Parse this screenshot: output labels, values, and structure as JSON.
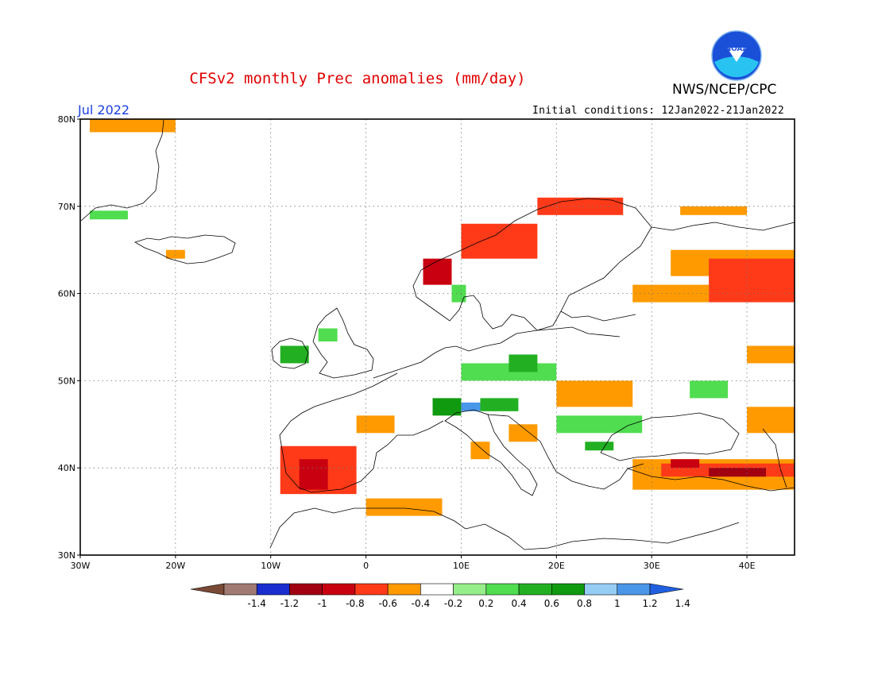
{
  "header": {
    "title": "CFSv2 monthly Prec anomalies (mm/day)",
    "organization": "NWS/NCEP/CPC",
    "target_month": "Jul 2022",
    "initial_conditions": "Initial conditions: 12Jan2022-21Jan2022",
    "logo": "noaa-logo"
  },
  "map": {
    "lon_range": [
      -30,
      45
    ],
    "lat_range": [
      30,
      80
    ],
    "lon_ticks": [
      {
        "value": -30,
        "label": "30W"
      },
      {
        "value": -20,
        "label": "20W"
      },
      {
        "value": -10,
        "label": "10W"
      },
      {
        "value": 0,
        "label": "0"
      },
      {
        "value": 10,
        "label": "10E"
      },
      {
        "value": 20,
        "label": "20E"
      },
      {
        "value": 30,
        "label": "30E"
      },
      {
        "value": 40,
        "label": "40E"
      }
    ],
    "lat_ticks": [
      {
        "value": 30,
        "label": "30N"
      },
      {
        "value": 40,
        "label": "40N"
      },
      {
        "value": 50,
        "label": "50N"
      },
      {
        "value": 60,
        "label": "60N"
      },
      {
        "value": 70,
        "label": "70N"
      },
      {
        "value": 80,
        "label": "80N"
      }
    ],
    "grid": "dotted",
    "anomaly_regions": [
      {
        "lon": [
          -29,
          -20
        ],
        "lat": [
          78.5,
          80
        ],
        "bin": "-0.4"
      },
      {
        "lon": [
          -29,
          -25
        ],
        "lat": [
          68.5,
          69.5
        ],
        "bin": "0.4"
      },
      {
        "lon": [
          -21,
          -19
        ],
        "lat": [
          64,
          65
        ],
        "bin": "-0.4"
      },
      {
        "lon": [
          -9,
          -6
        ],
        "lat": [
          52,
          54
        ],
        "bin": "0.6"
      },
      {
        "lon": [
          -5,
          -3
        ],
        "lat": [
          54.5,
          56
        ],
        "bin": "0.4"
      },
      {
        "lon": [
          -9,
          -1
        ],
        "lat": [
          37,
          42.5
        ],
        "bin": "-0.6"
      },
      {
        "lon": [
          -7,
          -4
        ],
        "lat": [
          37.5,
          41
        ],
        "bin": "-0.8"
      },
      {
        "lon": [
          -1,
          3
        ],
        "lat": [
          44,
          46
        ],
        "bin": "-0.4"
      },
      {
        "lon": [
          0,
          8
        ],
        "lat": [
          34.5,
          36.5
        ],
        "bin": "-0.4"
      },
      {
        "lon": [
          6,
          9
        ],
        "lat": [
          61,
          64
        ],
        "bin": "-0.8"
      },
      {
        "lon": [
          10,
          18
        ],
        "lat": [
          64,
          68
        ],
        "bin": "-0.6"
      },
      {
        "lon": [
          18,
          27
        ],
        "lat": [
          69,
          71
        ],
        "bin": "-0.6"
      },
      {
        "lon": [
          9,
          10.5
        ],
        "lat": [
          59,
          61
        ],
        "bin": "0.4"
      },
      {
        "lon": [
          10,
          20
        ],
        "lat": [
          50,
          52
        ],
        "bin": "0.4"
      },
      {
        "lon": [
          15,
          18
        ],
        "lat": [
          51,
          53
        ],
        "bin": "0.6"
      },
      {
        "lon": [
          7,
          10
        ],
        "lat": [
          46,
          48
        ],
        "bin": "0.8"
      },
      {
        "lon": [
          10,
          12
        ],
        "lat": [
          46.5,
          47.5
        ],
        "bin": "1.2"
      },
      {
        "lon": [
          12,
          16
        ],
        "lat": [
          46.5,
          48
        ],
        "bin": "0.6"
      },
      {
        "lon": [
          20,
          29
        ],
        "lat": [
          44,
          46
        ],
        "bin": "0.4"
      },
      {
        "lon": [
          23,
          26
        ],
        "lat": [
          42,
          43
        ],
        "bin": "0.6"
      },
      {
        "lon": [
          20,
          28
        ],
        "lat": [
          47,
          50
        ],
        "bin": "-0.4"
      },
      {
        "lon": [
          15,
          18
        ],
        "lat": [
          43,
          45
        ],
        "bin": "-0.4"
      },
      {
        "lon": [
          11,
          13
        ],
        "lat": [
          41,
          43
        ],
        "bin": "-0.4"
      },
      {
        "lon": [
          32,
          45
        ],
        "lat": [
          62,
          65
        ],
        "bin": "-0.4"
      },
      {
        "lon": [
          36,
          45
        ],
        "lat": [
          59,
          64
        ],
        "bin": "-0.6"
      },
      {
        "lon": [
          28,
          36
        ],
        "lat": [
          59,
          61
        ],
        "bin": "-0.4"
      },
      {
        "lon": [
          33,
          40
        ],
        "lat": [
          69,
          70
        ],
        "bin": "-0.4"
      },
      {
        "lon": [
          40,
          45
        ],
        "lat": [
          52,
          54
        ],
        "bin": "-0.4"
      },
      {
        "lon": [
          34,
          38
        ],
        "lat": [
          48,
          50
        ],
        "bin": "0.4"
      },
      {
        "lon": [
          40,
          45
        ],
        "lat": [
          44,
          47
        ],
        "bin": "-0.4"
      },
      {
        "lon": [
          28,
          45
        ],
        "lat": [
          37.5,
          41
        ],
        "bin": "-0.4"
      },
      {
        "lon": [
          31,
          45
        ],
        "lat": [
          39,
          40.5
        ],
        "bin": "-0.6"
      },
      {
        "lon": [
          32,
          35
        ],
        "lat": [
          40,
          41
        ],
        "bin": "-0.8"
      },
      {
        "lon": [
          36,
          42
        ],
        "lat": [
          39,
          40
        ],
        "bin": "-1"
      }
    ]
  },
  "colorbar": {
    "bins": [
      {
        "key": "<-1.4",
        "color": "#7a4a36"
      },
      {
        "key": "-1.4",
        "color": "#a07a72"
      },
      {
        "key": "-1.2",
        "color": "#1a2ed0"
      },
      {
        "key": "-1",
        "color": "#a00010"
      },
      {
        "key": "-0.8",
        "color": "#c80010"
      },
      {
        "key": "-0.6",
        "color": "#ff3a18"
      },
      {
        "key": "-0.4",
        "color": "#ff9a00"
      },
      {
        "key": "-0.2",
        "color": "#ffffff"
      },
      {
        "key": "0.2",
        "color": "#96ee8a"
      },
      {
        "key": "0.4",
        "color": "#50dd50"
      },
      {
        "key": "0.6",
        "color": "#22b022"
      },
      {
        "key": "0.8",
        "color": "#109a10"
      },
      {
        "key": "1",
        "color": "#96cdf5"
      },
      {
        "key": "1.2",
        "color": "#4a96e8"
      },
      {
        "key": ">1.4",
        "color": "#2060e0"
      }
    ],
    "labels": [
      "-1.4",
      "-1.2",
      "-1",
      "-0.8",
      "-0.6",
      "-0.4",
      "-0.2",
      "0.2",
      "0.4",
      "0.6",
      "0.8",
      "1",
      "1.2",
      "1.4"
    ]
  }
}
